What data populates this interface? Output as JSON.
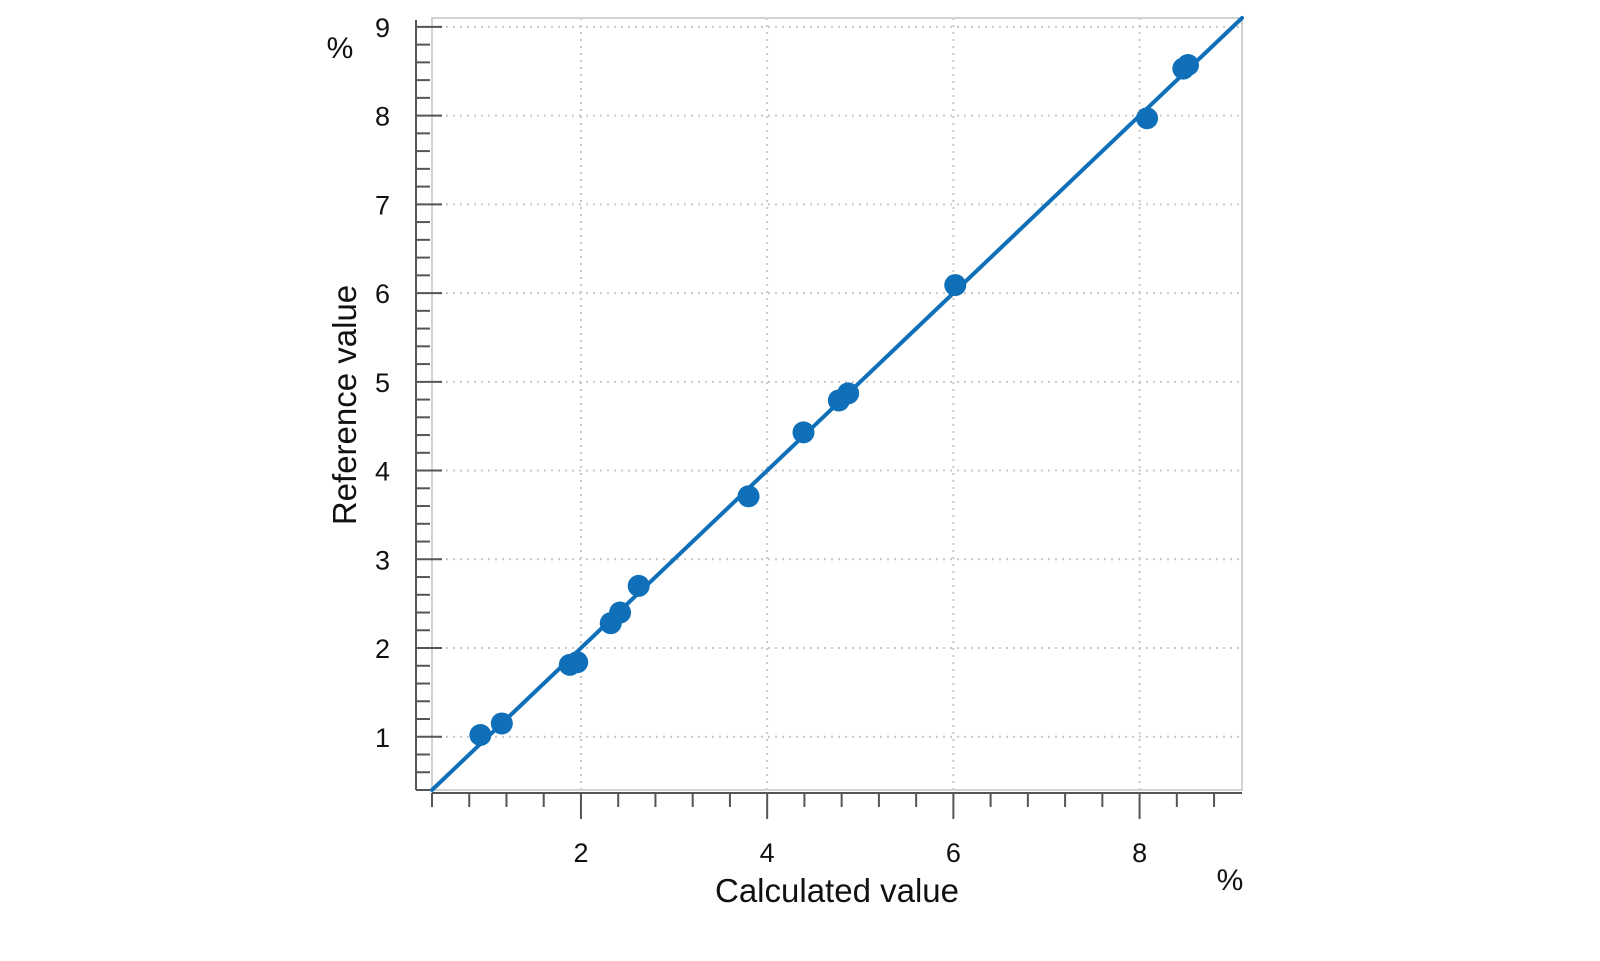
{
  "chart_data": {
    "type": "scatter",
    "title": "",
    "xlabel": "Calculated value",
    "ylabel": "Reference value",
    "x_unit": "%",
    "y_unit": "%",
    "xlim": [
      0.4,
      9.1
    ],
    "ylim": [
      0.4,
      9.1
    ],
    "x_ticks": [
      2,
      4,
      6,
      8
    ],
    "y_ticks": [
      1,
      2,
      3,
      4,
      5,
      6,
      7,
      8,
      9
    ],
    "x_minor_step": 0.4,
    "y_minor_step": 0.2,
    "grid": true,
    "legend": "none",
    "point_color": "#0f6fb8",
    "line_color": "#0f6fb8",
    "fit_line": {
      "x": [
        0.4,
        9.1
      ],
      "y": [
        0.4,
        9.1
      ]
    },
    "points": [
      {
        "x": 0.92,
        "y": 1.02
      },
      {
        "x": 1.15,
        "y": 1.15
      },
      {
        "x": 1.88,
        "y": 1.81
      },
      {
        "x": 1.96,
        "y": 1.84
      },
      {
        "x": 2.32,
        "y": 2.28
      },
      {
        "x": 2.42,
        "y": 2.4
      },
      {
        "x": 2.62,
        "y": 2.7
      },
      {
        "x": 3.8,
        "y": 3.71
      },
      {
        "x": 4.39,
        "y": 4.43
      },
      {
        "x": 4.77,
        "y": 4.79
      },
      {
        "x": 4.87,
        "y": 4.87
      },
      {
        "x": 6.02,
        "y": 6.09
      },
      {
        "x": 8.08,
        "y": 7.97
      },
      {
        "x": 8.47,
        "y": 8.53
      },
      {
        "x": 8.52,
        "y": 8.57
      }
    ]
  }
}
